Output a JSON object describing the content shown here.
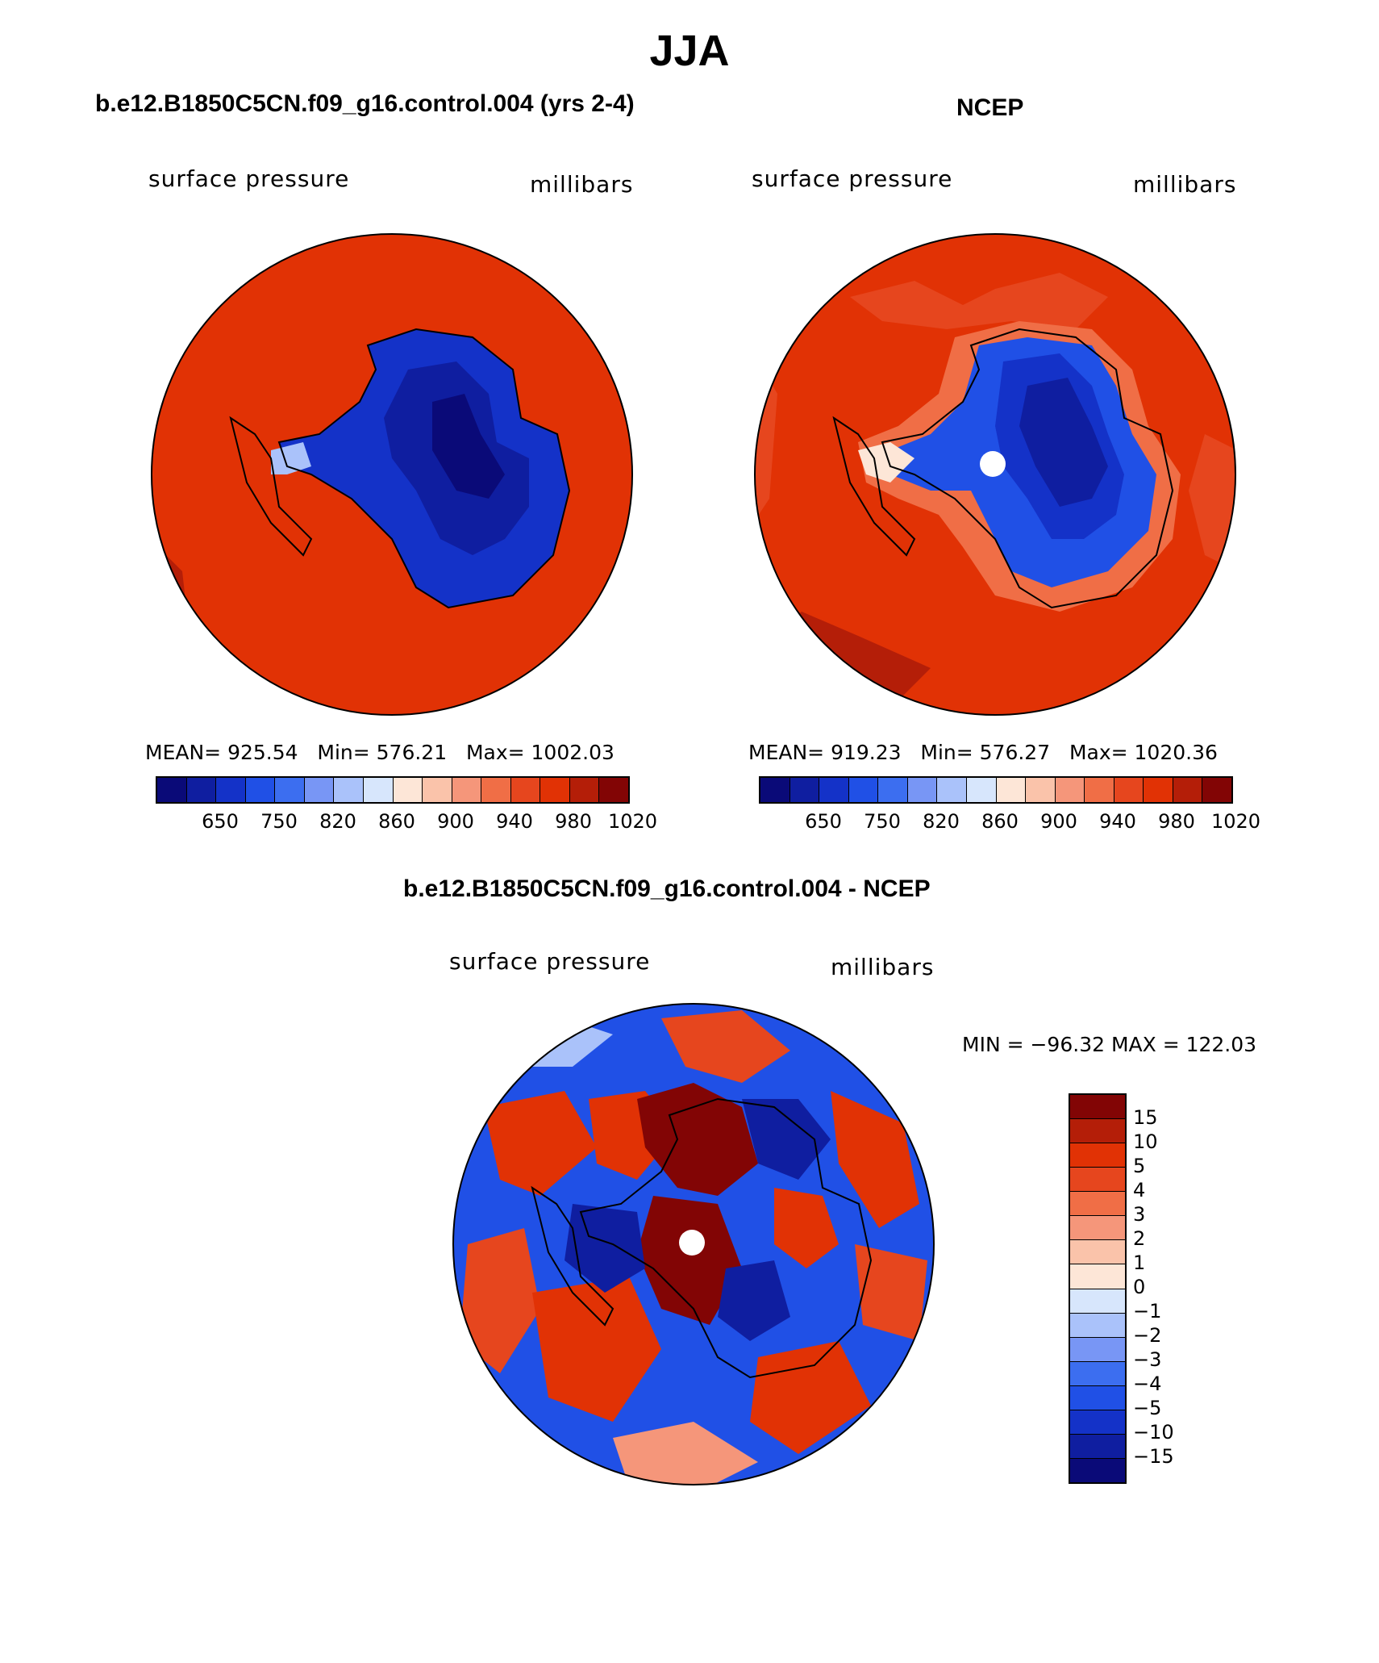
{
  "title": "JJA",
  "colors": {
    "abs_scale": [
      "#0a0a78",
      "#0f1ea0",
      "#1432c8",
      "#2050e6",
      "#3c6ef0",
      "#7896f5",
      "#aac2fa",
      "#d7e6fc",
      "#fde6d7",
      "#fac3aa",
      "#f5967a",
      "#f06e46",
      "#e6461e",
      "#e13205",
      "#b41e08",
      "#820505"
    ],
    "diff_scale": [
      "#0a0a78",
      "#0f1ea0",
      "#1432c8",
      "#2050e6",
      "#3c6ef0",
      "#7896f5",
      "#aac2fa",
      "#d7e6fc",
      "#fde6d7",
      "#fac3aa",
      "#f5967a",
      "#f06e46",
      "#e6461e",
      "#e13205",
      "#b41e08",
      "#820505"
    ]
  },
  "panels": [
    {
      "title": "b.e12.B1850C5CN.f09_g16.control.004 (yrs 2-4)",
      "variable": "surface pressure",
      "units": "millibars",
      "stats": "MEAN= 925.54   Min= 576.21   Max= 1002.03",
      "colorbar_labels": [
        "650",
        "750",
        "820",
        "860",
        "900",
        "940",
        "980",
        "1020"
      ]
    },
    {
      "title": "NCEP",
      "variable": "surface pressure",
      "units": "millibars",
      "stats": "MEAN= 919.23   Min= 576.27   Max= 1020.36",
      "colorbar_labels": [
        "650",
        "750",
        "820",
        "860",
        "900",
        "940",
        "980",
        "1020"
      ]
    },
    {
      "title": "b.e12.B1850C5CN.f09_g16.control.004 - NCEP",
      "variable": "surface pressure",
      "units": "millibars",
      "stats": "MIN = −96.32 MAX = 122.03",
      "colorbar_labels": [
        "15",
        "10",
        "5",
        "4",
        "3",
        "2",
        "1",
        "0",
        "−1",
        "−2",
        "−3",
        "−4",
        "−5",
        "−10",
        "−15"
      ]
    }
  ]
}
